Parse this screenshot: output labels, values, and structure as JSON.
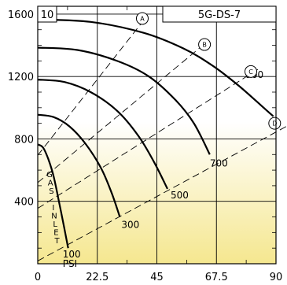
{
  "chart_data": {
    "type": "line",
    "panel_number": "10",
    "model_label": "5G-DS-7",
    "xlim": [
      0,
      90
    ],
    "ylim": [
      0,
      1650
    ],
    "x_ticks": [
      "0",
      "22.5",
      "45",
      "67.5",
      "90"
    ],
    "y_ticks": [
      "400",
      "800",
      "1200",
      "1600"
    ],
    "x_tick_values": [
      0,
      22.5,
      45,
      67.5,
      90
    ],
    "y_tick_values": [
      400,
      800,
      1200,
      1600
    ],
    "grid": true,
    "series": [
      {
        "name": "100 PSI",
        "label": "100\nPSI",
        "points": [
          [
            0,
            765
          ],
          [
            2,
            745
          ],
          [
            4,
            670
          ],
          [
            6,
            560
          ],
          [
            8,
            400
          ],
          [
            10,
            230
          ],
          [
            11.5,
            100
          ]
        ]
      },
      {
        "name": "300",
        "label": "300",
        "points": [
          [
            0,
            955
          ],
          [
            6,
            940
          ],
          [
            12,
            880
          ],
          [
            18,
            770
          ],
          [
            24,
            610
          ],
          [
            28,
            450
          ],
          [
            31,
            300
          ]
        ]
      },
      {
        "name": "500",
        "label": "500",
        "points": [
          [
            0,
            1180
          ],
          [
            10,
            1165
          ],
          [
            20,
            1100
          ],
          [
            30,
            980
          ],
          [
            38,
            820
          ],
          [
            44,
            650
          ],
          [
            49,
            480
          ]
        ]
      },
      {
        "name": "700",
        "label": "700",
        "points": [
          [
            0,
            1385
          ],
          [
            15,
            1370
          ],
          [
            30,
            1300
          ],
          [
            42,
            1200
          ],
          [
            52,
            1050
          ],
          [
            59,
            900
          ],
          [
            65,
            700
          ]
        ]
      },
      {
        "name": "900",
        "label": "900",
        "points": [
          [
            0,
            1565
          ],
          [
            20,
            1550
          ],
          [
            40,
            1480
          ],
          [
            55,
            1380
          ],
          [
            66,
            1270
          ],
          [
            76,
            1140
          ],
          [
            86,
            990
          ],
          [
            89,
            945
          ]
        ]
      }
    ],
    "dashed_lines": [
      {
        "name": "A",
        "points": [
          [
            0,
            695
          ],
          [
            40,
            1560
          ]
        ]
      },
      {
        "name": "B",
        "points": [
          [
            0,
            520
          ],
          [
            62,
            1395
          ]
        ]
      },
      {
        "name": "C",
        "points": [
          [
            0,
            355
          ],
          [
            84,
            1255
          ]
        ]
      },
      {
        "name": "D",
        "points": [
          [
            0,
            18
          ],
          [
            95,
            890
          ]
        ]
      }
    ],
    "markers": [
      {
        "label": "A",
        "x": 39.5,
        "y": 1572
      },
      {
        "label": "B",
        "x": 63,
        "y": 1405
      },
      {
        "label": "C",
        "x": 80.5,
        "y": 1232
      },
      {
        "label": "D",
        "x": 89.5,
        "y": 900
      }
    ],
    "annotations": {
      "gas_inlet": [
        "G",
        "A",
        "S",
        "",
        "I",
        "N",
        "L",
        "E",
        "T"
      ]
    },
    "colors": {
      "gradient_top": "#ffffff",
      "gradient_bottom": "#f5e78f",
      "line": "#000000"
    }
  }
}
